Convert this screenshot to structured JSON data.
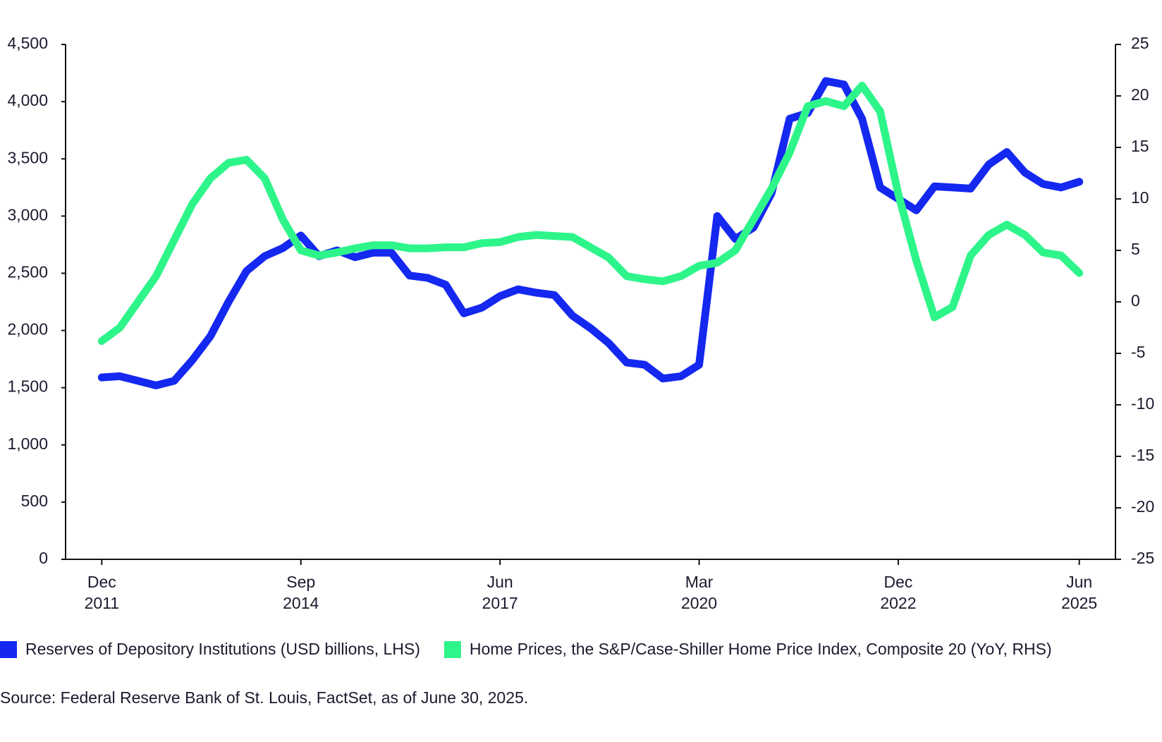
{
  "chart_data": {
    "type": "line",
    "x": [
      "2011-12",
      "2012-03",
      "2012-06",
      "2012-09",
      "2012-12",
      "2013-03",
      "2013-06",
      "2013-09",
      "2013-12",
      "2014-03",
      "2014-06",
      "2014-09",
      "2014-12",
      "2015-03",
      "2015-06",
      "2015-09",
      "2015-12",
      "2016-03",
      "2016-06",
      "2016-09",
      "2016-12",
      "2017-03",
      "2017-06",
      "2017-09",
      "2017-12",
      "2018-03",
      "2018-06",
      "2018-09",
      "2018-12",
      "2019-03",
      "2019-06",
      "2019-09",
      "2019-12",
      "2020-03",
      "2020-06",
      "2020-09",
      "2020-12",
      "2021-03",
      "2021-06",
      "2021-09",
      "2021-12",
      "2022-03",
      "2022-06",
      "2022-09",
      "2022-12",
      "2023-03",
      "2023-06",
      "2023-09",
      "2023-12",
      "2024-03",
      "2024-06",
      "2024-09",
      "2024-12",
      "2025-03",
      "2025-06"
    ],
    "series": [
      {
        "name": "Reserves of Depository Institutions (USD billions, LHS)",
        "color": "#1428f0",
        "axis": "y",
        "values": [
          1590,
          1600,
          1560,
          1520,
          1560,
          1740,
          1950,
          2250,
          2520,
          2650,
          2720,
          2830,
          2650,
          2700,
          2640,
          2680,
          2680,
          2480,
          2460,
          2400,
          2150,
          2200,
          2300,
          2360,
          2330,
          2310,
          2130,
          2020,
          1890,
          1720,
          1700,
          1580,
          1600,
          1700,
          3000,
          2800,
          2900,
          3200,
          3850,
          3900,
          4180,
          4150,
          3850,
          3250,
          3150,
          3050,
          3260,
          3250,
          3240,
          3450,
          3560,
          3380,
          3280,
          3250,
          3300
        ]
      },
      {
        "name": "Home Prices, the S&P/Case-Shiller Home Price Index, Composite 20 (YoY, RHS)",
        "color": "#2ef58a",
        "axis": "y2",
        "values": [
          -3.8,
          -2.5,
          0,
          2.5,
          6,
          9.5,
          12,
          13.5,
          13.8,
          12,
          8,
          5,
          4.5,
          4.8,
          5.2,
          5.5,
          5.5,
          5.2,
          5.2,
          5.3,
          5.3,
          5.7,
          5.8,
          6.3,
          6.5,
          6.4,
          6.3,
          5.3,
          4.3,
          2.5,
          2.2,
          2,
          2.5,
          3.5,
          3.8,
          5,
          8,
          11,
          14.5,
          19,
          19.5,
          19,
          21,
          18.5,
          10.5,
          4,
          -1.5,
          -0.5,
          4.5,
          6.5,
          7.5,
          6.5,
          4.8,
          4.5,
          2.8
        ]
      }
    ],
    "xlim": [
      "2011-06",
      "2025-12"
    ],
    "xticks": [
      {
        "value": "2011-12",
        "label": "Dec 2011"
      },
      {
        "value": "2014-09",
        "label": "Sep 2014"
      },
      {
        "value": "2017-06",
        "label": "Jun 2017"
      },
      {
        "value": "2020-03",
        "label": "Mar 2020"
      },
      {
        "value": "2022-12",
        "label": "Dec 2022"
      },
      {
        "value": "2025-06",
        "label": "Jun 2025"
      }
    ],
    "ylim": [
      0,
      4500
    ],
    "yticks": [
      0,
      500,
      {
        "value": 1000,
        "label": "1,000"
      },
      {
        "value": 1500,
        "label": "1,500"
      },
      {
        "value": 2000,
        "label": "2,000"
      },
      {
        "value": 2500,
        "label": "2,500"
      },
      {
        "value": 3000,
        "label": "3,000"
      },
      {
        "value": 3500,
        "label": "3,500"
      },
      {
        "value": 4000,
        "label": "4,000"
      },
      {
        "value": 4500,
        "label": "4,500"
      }
    ],
    "y2lim": [
      -25,
      25
    ],
    "y2ticks": [
      -25,
      -20,
      -15,
      -10,
      -5,
      0,
      5,
      10,
      15,
      20,
      25
    ],
    "grid": false,
    "source": "Source: Federal Reserve Bank of St. Louis, FactSet, as of June 30, 2025."
  }
}
